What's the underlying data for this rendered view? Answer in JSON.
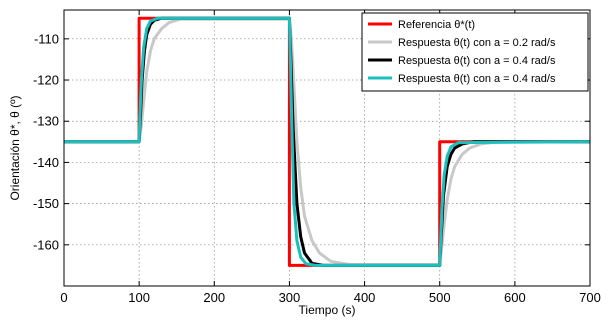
{
  "chart_data": {
    "type": "line",
    "xlabel": "Tiempo (s)",
    "ylabel": "Orientación θ*, θ (º)",
    "xlim": [
      0,
      700
    ],
    "ylim": [
      -170,
      -103
    ],
    "xticks": [
      0,
      100,
      200,
      300,
      400,
      500,
      600,
      700
    ],
    "yticks": [
      -110,
      -120,
      -130,
      -140,
      -150,
      -160
    ],
    "grid": true,
    "legend_position": "top-right",
    "series": [
      {
        "name": "Referencia θ*(t)",
        "color": "#ff0000",
        "x": [
          0,
          100,
          100,
          300,
          300,
          500,
          500,
          700
        ],
        "y": [
          -135,
          -135,
          -105,
          -105,
          -165,
          -165,
          -135,
          -135
        ]
      },
      {
        "name": "Respuesta θ(t) con a = 0.2 rad/s",
        "color": "#c8c8c8",
        "x": [
          0,
          100,
          103,
          106,
          110,
          115,
          120,
          130,
          140,
          155,
          300,
          303,
          306,
          310,
          315,
          320,
          330,
          340,
          355,
          380,
          500,
          503,
          506,
          510,
          515,
          520,
          530,
          540,
          555,
          580,
          700
        ],
        "y": [
          -135,
          -135,
          -131,
          -125,
          -118,
          -113,
          -110,
          -107.5,
          -106,
          -105.2,
          -105.2,
          -111,
          -121,
          -135,
          -146,
          -153,
          -159,
          -162,
          -164,
          -164.8,
          -164.8,
          -160,
          -155,
          -149,
          -144,
          -141,
          -138,
          -136.5,
          -135.5,
          -135,
          -135
        ]
      },
      {
        "name": "Respuesta θ(t) con a = 0.4 rad/s",
        "color": "#000000",
        "x": [
          0,
          100,
          102,
          104,
          107,
          110,
          115,
          120,
          130,
          300,
          302,
          305,
          310,
          315,
          320,
          330,
          345,
          500,
          502,
          505,
          510,
          515,
          520,
          530,
          545,
          700
        ],
        "y": [
          -135,
          -135,
          -128,
          -120,
          -113,
          -109,
          -106.5,
          -105.5,
          -105,
          -105,
          -115,
          -132,
          -150,
          -158,
          -162,
          -164.5,
          -165,
          -165,
          -158,
          -148,
          -141,
          -138,
          -136.5,
          -135.5,
          -135,
          -135
        ]
      },
      {
        "name": "Respuesta θ(t) con a = 0.4 rad/s",
        "color": "#19c0c0",
        "x": [
          0,
          100,
          101,
          103,
          106,
          110,
          115,
          125,
          300,
          301,
          303,
          306,
          310,
          315,
          322,
          335,
          500,
          501,
          503,
          506,
          510,
          515,
          525,
          700
        ],
        "y": [
          -135,
          -135,
          -129,
          -120,
          -112,
          -107.5,
          -105.7,
          -105,
          -105,
          -113,
          -130,
          -150,
          -159,
          -163,
          -164.6,
          -165,
          -165,
          -160,
          -151,
          -143,
          -138.5,
          -136.2,
          -135.2,
          -135
        ]
      }
    ]
  }
}
